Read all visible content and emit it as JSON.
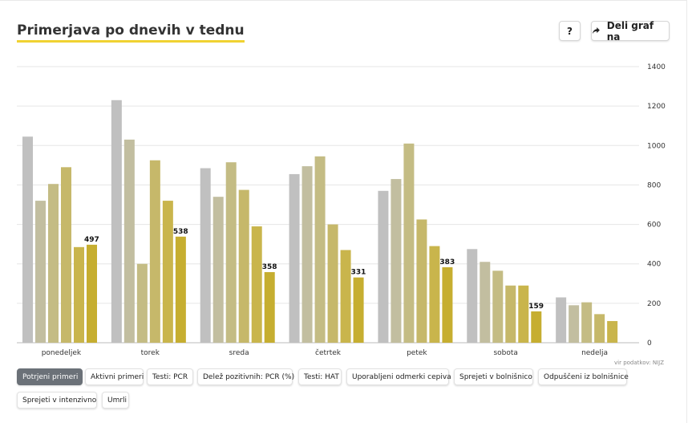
{
  "header": {
    "title": "Primerjava po dnevih v tednu",
    "help_label": "?",
    "share_label": "Deli graf na"
  },
  "source_note": "vir podatkov: NIJZ",
  "tags": [
    {
      "label": "Potrjeni primeri",
      "active": true
    },
    {
      "label": "Aktivni primeri",
      "active": false
    },
    {
      "label": "Testi: PCR",
      "active": false
    },
    {
      "label": "Delež pozitivnih: PCR (%)",
      "active": false
    },
    {
      "label": "Testi: HAT",
      "active": false
    },
    {
      "label": "Uporabljeni odmerki cepiva",
      "active": false
    },
    {
      "label": "Sprejeti v bolnišnico",
      "active": false
    },
    {
      "label": "Odpuščeni iz bolnišnice",
      "active": false
    },
    {
      "label": "Sprejeti v intenzivno",
      "active": false
    },
    {
      "label": "Umrli",
      "active": false
    }
  ],
  "chart_data": {
    "type": "bar",
    "title": "Primerjava po dnevih v tednu",
    "categories": [
      "ponedeljek",
      "torek",
      "sreda",
      "četrtek",
      "petek",
      "sobota",
      "nedelja"
    ],
    "series_colors": [
      "#c0c0c0",
      "#c2bea0",
      "#c4bc84",
      "#c6b86a",
      "#c9b54c",
      "#c6ae30"
    ],
    "series": [
      {
        "values": [
          1045,
          1230,
          885,
          855,
          770,
          475,
          230
        ]
      },
      {
        "values": [
          720,
          1030,
          740,
          895,
          830,
          410,
          190
        ]
      },
      {
        "values": [
          805,
          400,
          915,
          945,
          1010,
          365,
          205
        ]
      },
      {
        "values": [
          890,
          925,
          775,
          600,
          625,
          290,
          145
        ]
      },
      {
        "values": [
          485,
          720,
          590,
          470,
          490,
          290,
          110
        ]
      },
      {
        "values": [
          497,
          538,
          358,
          331,
          383,
          159,
          null
        ]
      }
    ],
    "data_labels": [
      "497",
      "538",
      "358",
      "331",
      "383",
      "159",
      ""
    ],
    "ylim": [
      0,
      1400
    ],
    "yticks": [
      "0",
      "200",
      "400",
      "600",
      "800",
      "1000",
      "1200",
      "1400"
    ],
    "y_axis_position": "right",
    "grid": true,
    "legend": false
  }
}
